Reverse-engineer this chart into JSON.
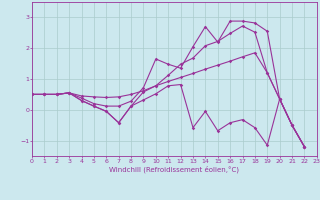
{
  "xlabel": "Windchill (Refroidissement éolien,°C)",
  "background_color": "#cce8ee",
  "line_color": "#993399",
  "grid_color": "#aacccc",
  "xlim": [
    0,
    23
  ],
  "ylim": [
    -1.5,
    3.5
  ],
  "yticks": [
    -1,
    0,
    1,
    2,
    3
  ],
  "xticks": [
    0,
    1,
    2,
    3,
    4,
    5,
    6,
    7,
    8,
    9,
    10,
    11,
    12,
    13,
    14,
    15,
    16,
    17,
    18,
    19,
    20,
    21,
    22,
    23
  ],
  "lines": [
    [
      0.5,
      0.5,
      0.5,
      0.55,
      0.45,
      0.42,
      0.4,
      0.42,
      0.5,
      0.62,
      0.78,
      0.92,
      1.05,
      1.18,
      1.32,
      1.45,
      1.58,
      1.72,
      1.85,
      1.2,
      0.35,
      -0.5,
      -1.2
    ],
    [
      0.5,
      0.5,
      0.5,
      0.55,
      0.38,
      0.2,
      0.12,
      0.12,
      0.28,
      0.72,
      1.65,
      1.48,
      1.35,
      2.05,
      2.7,
      2.2,
      2.88,
      2.88,
      2.82,
      2.55,
      0.35,
      -0.5,
      -1.2
    ],
    [
      0.5,
      0.5,
      0.5,
      0.55,
      0.3,
      0.12,
      -0.05,
      -0.42,
      0.12,
      0.58,
      0.78,
      1.12,
      1.48,
      1.68,
      2.08,
      2.22,
      2.48,
      2.72,
      2.52,
      1.2,
      0.35,
      -0.5,
      -1.2
    ],
    [
      0.5,
      0.5,
      0.5,
      0.55,
      0.3,
      0.12,
      -0.05,
      -0.42,
      0.12,
      0.32,
      0.52,
      0.78,
      0.82,
      -0.58,
      -0.05,
      -0.68,
      -0.42,
      -0.32,
      -0.58,
      -1.15,
      0.35,
      -0.5,
      -1.2
    ]
  ],
  "xvals": [
    0,
    1,
    2,
    3,
    4,
    5,
    6,
    7,
    8,
    9,
    10,
    11,
    12,
    13,
    14,
    15,
    16,
    17,
    18,
    19,
    20,
    21,
    22
  ]
}
